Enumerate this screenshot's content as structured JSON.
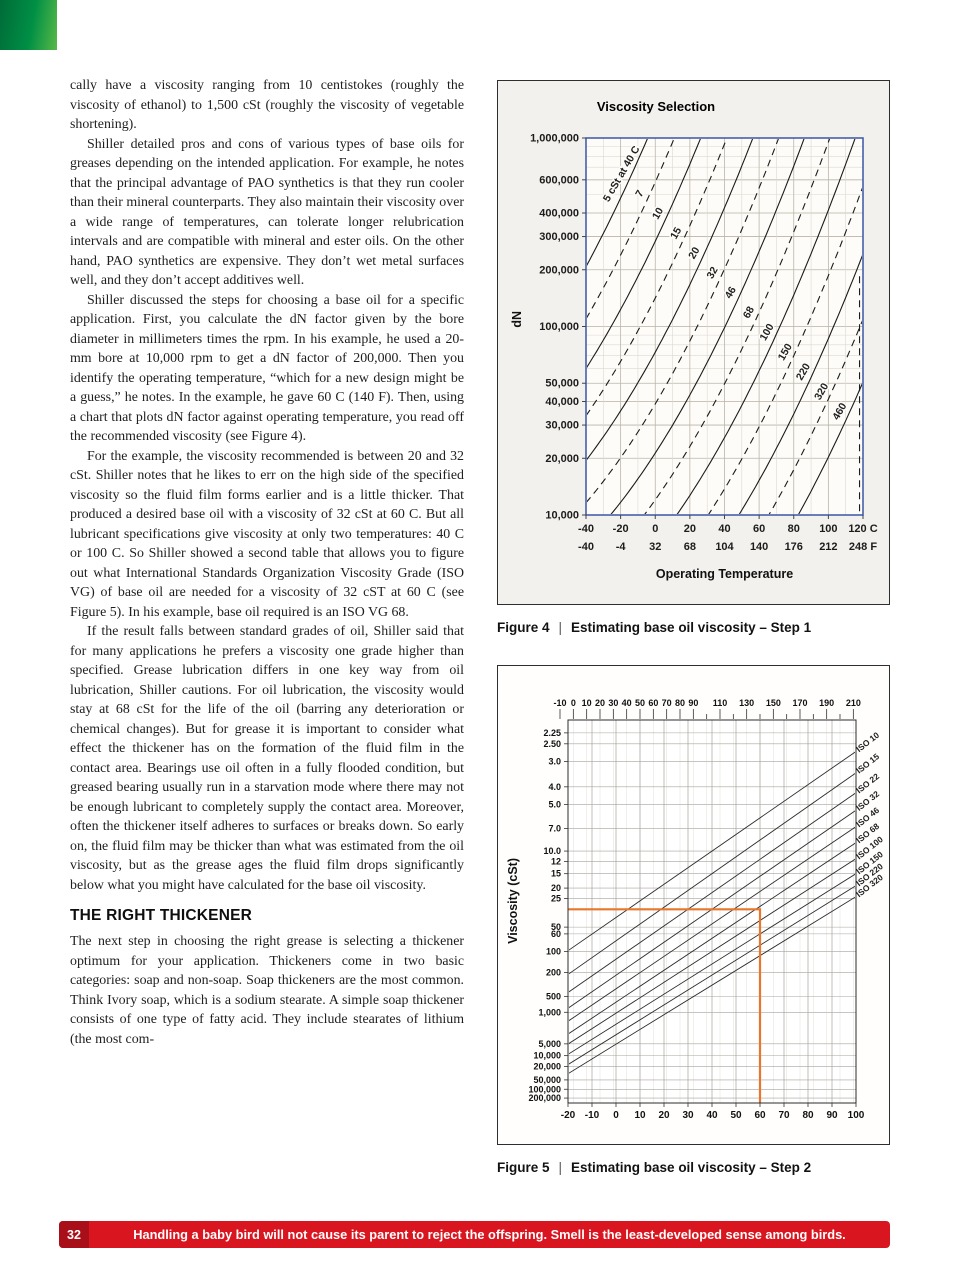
{
  "page": {
    "footer": {
      "page_number": "32",
      "text": "Handling a baby bird will not cause its parent to reject the offspring. Smell is the least-developed sense among birds."
    }
  },
  "colors": {
    "footer_red": "#d9161f",
    "footer_number_bg": "#a90f18",
    "corner_green_dark": "#006b38",
    "corner_green_light": "#58b947",
    "figure4_frame_blue": "#3a57a7",
    "highlight_orange": "#e8762c"
  },
  "article": {
    "heading": "THE RIGHT THICKENER",
    "paragraphs": [
      "cally have a viscosity ranging from 10 centistokes (roughly the viscosity of ethanol) to 1,500 cSt (roughly the viscosity of vegetable shortening).",
      "Shiller detailed pros and cons of various types of base oils for greases depending on the intended application. For example, he notes that the principal advantage of PAO synthetics is that they run cooler than their mineral counterparts. They also maintain their viscosity over a wide range of temperatures, can tolerate longer relubrication intervals and are compatible with mineral and ester oils. On the other hand, PAO synthetics are expensive. They don’t wet metal surfaces well, and they don’t accept additives well.",
      "Shiller discussed the steps for choosing a base oil for a specific application. First, you calculate the dN factor given by the bore diameter in millimeters times the rpm. In his example, he used a 20-mm bore at 10,000 rpm to get a dN factor of 200,000. Then you identify the operating temperature, “which for a new design might be a guess,” he notes. In the example, he gave 60 C (140 F). Then, using a chart that plots dN factor against operating temperature, you read off the recommended viscosity (see Figure 4).",
      "For the example, the viscosity recommended is between 20 and 32 cSt. Shiller notes that he likes to err on the high side of the specified viscosity so the fluid film forms earlier and is a little thicker. That produced a desired base oil with a viscosity of 32 cSt at 60 C. But all lubricant specifications give viscosity at only two temperatures: 40 C or 100 C. So Shiller showed a second table that allows you to figure out what International Standards Organization Viscosity Grade (ISO VG) of base oil are needed for a viscosity of 32 cST at 60 C (see Figure 5). In his example, base oil required is an ISO VG 68.",
      "If the result falls between standard grades of oil, Shiller said that for many applications he prefers a viscosity one grade higher than specified. Grease lubrication differs in one key way from oil lubrication, Shiller cautions. For oil lubrication, the viscosity would stay at 68 cSt for the life of the oil (barring any deterioration or chemical changes). But for grease it is important to consider what effect the thickener has on the formation of the fluid film in the contact area. Bearings use oil often in a fully flooded condition, but greased bearing usually run in a starvation mode where there may not be enough lubricant to completely supply the contact area. Moreover, often the thickener itself adheres to surfaces or breaks down. So early on, the fluid film may be thicker than what was estimated from the oil viscosity, but as the grease ages the fluid film drops significantly below what you might have calculated for the base oil viscosity.",
      "The next step in choosing the right grease is selecting a thickener optimum for your application. Thickeners come in two basic categories: soap and non-soap. Soap thickeners are the most common. Think Ivory soap, which is a sodium stearate. A simple soap thickener consists of one type of fatty acid. They include stearates of lithium (the most com-"
    ]
  },
  "figure4": {
    "caption_label": "Figure 4",
    "caption_separator": "|",
    "caption_text": "Estimating base oil viscosity – Step 1"
  },
  "figure5": {
    "caption_label": "Figure 5",
    "caption_separator": "|",
    "caption_text": "Estimating base oil viscosity – Step 2"
  },
  "chart_data": [
    {
      "id": "fig4",
      "type": "line",
      "title": "Viscosity Selection",
      "ylabel": "dN",
      "xlabel": "Operating Temperature",
      "xlim_c": [
        -40,
        120
      ],
      "ylog_lim": [
        4,
        6
      ],
      "x_ticks": {
        "values": [
          -40,
          -20,
          0,
          20,
          40,
          60,
          80,
          100,
          120
        ],
        "labels_c": [
          "-40",
          "-20",
          "0",
          "20",
          "40",
          "60",
          "80",
          "100",
          "120 C"
        ],
        "labels_f": [
          "-40",
          "-4",
          "32",
          "68",
          "104",
          "140",
          "176",
          "212",
          "248 F"
        ]
      },
      "y_ticks": {
        "values": [
          1000000,
          600000,
          400000,
          300000,
          200000,
          100000,
          50000,
          40000,
          30000,
          20000,
          10000
        ],
        "labels": [
          "1,000,000",
          "600,000",
          "400,000",
          "300,000",
          "200,000",
          "100,000",
          "50,000",
          "40,000",
          "30,000",
          "20,000",
          "10,000"
        ]
      },
      "curve_slope": 0.02,
      "curve_quad": 6e-05,
      "curves": [
        {
          "label": "5 cSt at 40 C",
          "t0": -15,
          "log0": 5.78,
          "dashed": false
        },
        {
          "label": "7",
          "t0": -4.5,
          "log0": 5.675,
          "dashed": true
        },
        {
          "label": "10",
          "t0": 6,
          "log0": 5.57,
          "dashed": false
        },
        {
          "label": "15",
          "t0": 16.5,
          "log0": 5.465,
          "dashed": true
        },
        {
          "label": "20",
          "t0": 27,
          "log0": 5.36,
          "dashed": false
        },
        {
          "label": "32",
          "t0": 37.5,
          "log0": 5.255,
          "dashed": true
        },
        {
          "label": "46",
          "t0": 48,
          "log0": 5.15,
          "dashed": false
        },
        {
          "label": "68",
          "t0": 58.5,
          "log0": 5.045,
          "dashed": true
        },
        {
          "label": "100",
          "t0": 69,
          "log0": 4.94,
          "dashed": false
        },
        {
          "label": "150",
          "t0": 79.5,
          "log0": 4.835,
          "dashed": true
        },
        {
          "label": "220",
          "t0": 90,
          "log0": 4.73,
          "dashed": false
        },
        {
          "label": "320",
          "t0": 100.5,
          "log0": 4.625,
          "dashed": true
        },
        {
          "label": "460",
          "t0": 111,
          "log0": 4.52,
          "dashed": false
        }
      ],
      "vertical_dashed": {
        "t": 118,
        "log_from": 4.02,
        "log_to": 5.28
      },
      "frame_color": "#3a57a7"
    },
    {
      "id": "fig5",
      "type": "line",
      "ylabel": "Viscosity (cSt)",
      "xlim_c": [
        -20,
        100
      ],
      "v_domain": [
        2.0,
        300000
      ],
      "y_ticks": {
        "values": [
          2.25,
          2.5,
          3,
          4,
          5,
          7,
          10,
          12,
          15,
          20,
          25,
          50,
          60,
          100,
          200,
          500,
          1000,
          5000,
          10000,
          20000,
          50000,
          100000,
          200000
        ],
        "labels": [
          "2.25",
          "2.50",
          "3.0",
          "4.0",
          "5.0",
          "7.0",
          "10.0",
          "12",
          "15",
          "20",
          "25",
          "50",
          "60",
          "100",
          "200",
          "500",
          "1,000",
          "5,000",
          "10,000",
          "20,000",
          "50,000",
          "100,000",
          "200,000"
        ]
      },
      "x_bottom_ticks": {
        "values": [
          -20,
          -10,
          0,
          10,
          20,
          30,
          40,
          50,
          60,
          70,
          80,
          90,
          100
        ],
        "labels": [
          "-20",
          "-10",
          "0",
          "10",
          "20",
          "30",
          "40",
          "50",
          "60",
          "70",
          "80",
          "90",
          "100"
        ]
      },
      "x_top_ticks": {
        "minor_step_f": 10,
        "range_f": [
          -10,
          210
        ],
        "labeled_f": [
          -10,
          0,
          10,
          20,
          30,
          40,
          50,
          60,
          70,
          80,
          90,
          110,
          130,
          150,
          170,
          190,
          210
        ]
      },
      "iso_lines": [
        {
          "grade": "ISO 10",
          "v40": 10,
          "v100": 2.7
        },
        {
          "grade": "ISO 15",
          "v40": 15,
          "v100": 3.4
        },
        {
          "grade": "ISO 22",
          "v40": 22,
          "v100": 4.3
        },
        {
          "grade": "ISO 32",
          "v40": 32,
          "v100": 5.4
        },
        {
          "grade": "ISO 46",
          "v40": 46,
          "v100": 6.8
        },
        {
          "grade": "ISO 68",
          "v40": 68,
          "v100": 8.7
        },
        {
          "grade": "ISO 100",
          "v40": 100,
          "v100": 11.4
        },
        {
          "grade": "ISO 150",
          "v40": 150,
          "v100": 15
        },
        {
          "grade": "ISO 220",
          "v40": 220,
          "v100": 19
        },
        {
          "grade": "ISO 320",
          "v40": 320,
          "v100": 24
        }
      ],
      "highlight": {
        "temp_c": 60,
        "viscosity_cst": 32,
        "color": "#e8762c"
      }
    }
  ]
}
